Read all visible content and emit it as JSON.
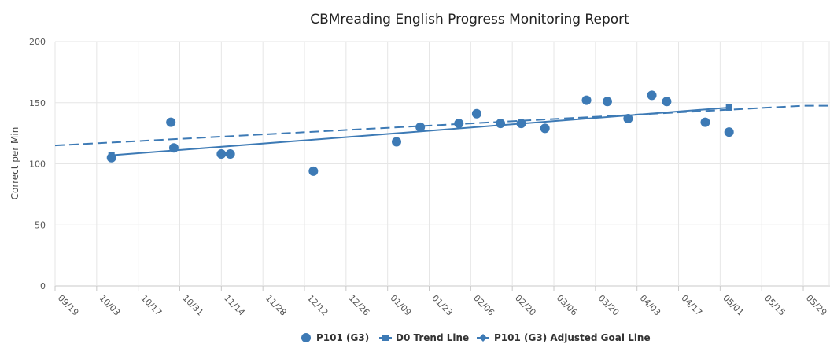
{
  "chart_data": {
    "type": "line",
    "title": "CBMreading English Progress Monitoring Report",
    "ylabel": "Correct per Min",
    "xlabel": "",
    "ylim": [
      0,
      200
    ],
    "yticks": [
      "0",
      "50",
      "100",
      "150",
      "200"
    ],
    "xlim": [
      "2017-09-19",
      "2018-06-07"
    ],
    "xticks": [
      "2017-09-19",
      "2017-10-03",
      "2017-10-17",
      "2017-10-31",
      "2017-11-14",
      "2017-11-28",
      "2017-12-12",
      "2017-12-26",
      "2018-01-09",
      "2018-01-23",
      "2018-02-06",
      "2018-02-20",
      "2018-03-06",
      "2018-03-20",
      "2018-04-03",
      "2018-04-17",
      "2018-05-01",
      "2018-05-15",
      "2018-05-29"
    ],
    "xtick_labels": [
      "09/19",
      "10/03",
      "10/17",
      "10/31",
      "11/14",
      "11/28",
      "12/12",
      "12/26",
      "01/09",
      "01/23",
      "02/06",
      "02/20",
      "03/06",
      "03/20",
      "04/03",
      "04/17",
      "05/01",
      "05/15",
      "05/29"
    ],
    "grid": true,
    "legend_position": "bottom",
    "series": [
      {
        "name": "P101 (G3)",
        "kind": "scatter",
        "color": "#3d7ab5",
        "points": [
          {
            "x": "2017-10-08",
            "y": 105
          },
          {
            "x": "2017-10-28",
            "y": 134
          },
          {
            "x": "2017-10-29",
            "y": 113
          },
          {
            "x": "2017-11-14",
            "y": 108
          },
          {
            "x": "2017-11-17",
            "y": 108
          },
          {
            "x": "2017-12-15",
            "y": 94
          },
          {
            "x": "2018-01-12",
            "y": 118
          },
          {
            "x": "2018-01-20",
            "y": 130
          },
          {
            "x": "2018-02-02",
            "y": 133
          },
          {
            "x": "2018-02-08",
            "y": 141
          },
          {
            "x": "2018-02-16",
            "y": 133
          },
          {
            "x": "2018-02-23",
            "y": 133
          },
          {
            "x": "2018-03-03",
            "y": 129
          },
          {
            "x": "2018-03-17",
            "y": 152
          },
          {
            "x": "2018-03-24",
            "y": 151
          },
          {
            "x": "2018-03-31",
            "y": 137
          },
          {
            "x": "2018-04-08",
            "y": 156
          },
          {
            "x": "2018-04-13",
            "y": 151
          },
          {
            "x": "2018-04-26",
            "y": 134
          },
          {
            "x": "2018-05-04",
            "y": 126
          }
        ]
      },
      {
        "name": "D0 Trend Line",
        "kind": "line",
        "color": "#3d7ab5",
        "points": [
          {
            "x": "2017-10-08",
            "y": 107
          },
          {
            "x": "2018-05-04",
            "y": 146
          }
        ]
      },
      {
        "name": "P101 (G3) Adjusted Goal Line",
        "kind": "dashed-line",
        "color": "#3d7ab5",
        "points": [
          {
            "x": "2017-09-19",
            "y": 115
          },
          {
            "x": "2018-05-29",
            "y": 147.5
          },
          {
            "x": "2018-06-07",
            "y": 147.5
          }
        ]
      }
    ]
  }
}
